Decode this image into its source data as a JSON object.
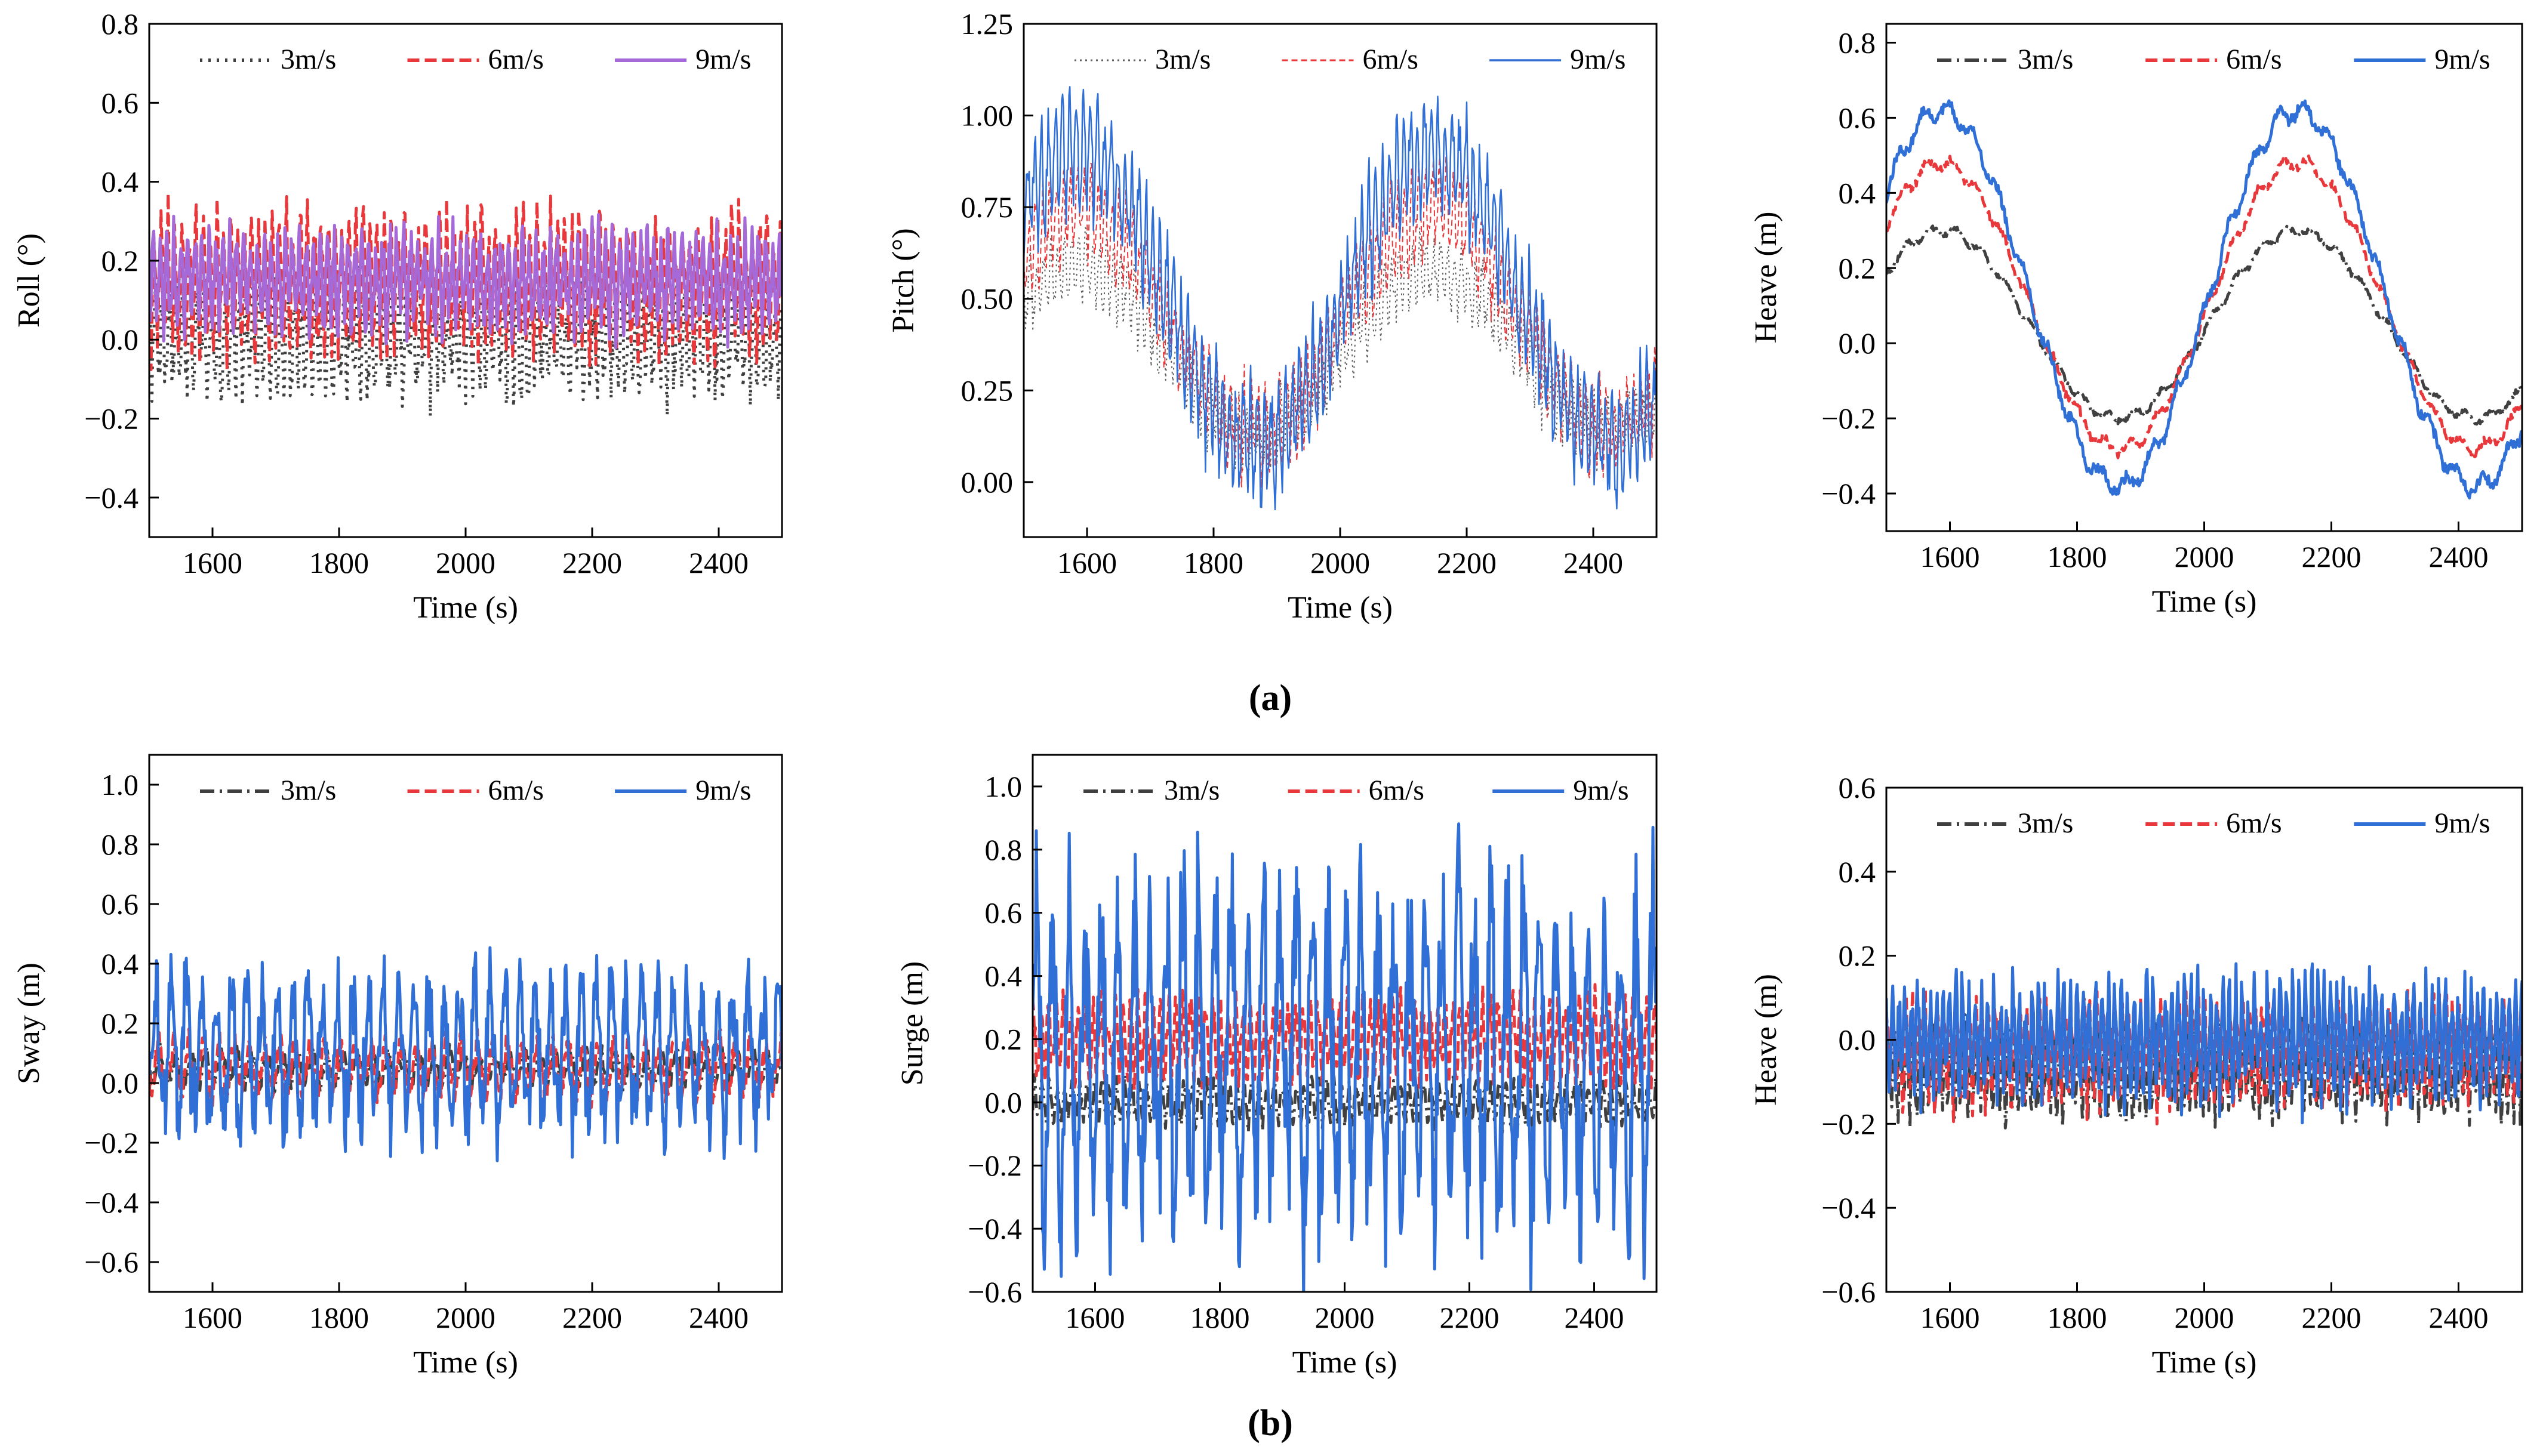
{
  "figure": {
    "group_labels": [
      "(a)",
      "(b)"
    ]
  },
  "chart_data": [
    {
      "type": "line",
      "title": "",
      "xlabel": "Time (s)",
      "ylabel": "Roll (°)",
      "xlim": [
        1500,
        2500
      ],
      "ylim": [
        -0.5,
        0.8
      ],
      "xticks": [
        1600,
        1800,
        2000,
        2200,
        2400
      ],
      "xtick_labels": [
        "1600",
        "1800",
        "2000",
        "2200",
        "2400"
      ],
      "yticks": [
        -0.4,
        -0.2,
        0.0,
        0.2,
        0.4,
        0.6,
        0.8
      ],
      "ytick_labels": [
        "−0.4",
        "−0.2",
        "0.0",
        "0.2",
        "0.4",
        "0.6",
        "0.8"
      ],
      "grid": false,
      "legend": "top",
      "series": [
        {
          "name": "3m/s",
          "color": "#404040",
          "style": "dot",
          "mean": 0.0,
          "amp": 0.14,
          "spike": 0.38,
          "period": 11,
          "slow_period": 0,
          "slow_amp": 0
        },
        {
          "name": "6m/s",
          "color": "#e8383b",
          "style": "dash",
          "mean": 0.14,
          "amp": 0.17,
          "spike": 0.5,
          "period": 11,
          "slow_period": 0,
          "slow_amp": 0
        },
        {
          "name": "9m/s",
          "color": "#a56ad8",
          "style": "thick",
          "mean": 0.15,
          "amp": 0.13,
          "spike": 0.55,
          "period": 11,
          "slow_period": 0,
          "slow_amp": 0
        }
      ]
    },
    {
      "type": "line",
      "title": "",
      "xlabel": "Time (s)",
      "ylabel": "Pitch (°)",
      "xlim": [
        1500,
        2500
      ],
      "ylim": [
        -0.15,
        1.25
      ],
      "xticks": [
        1600,
        1800,
        2000,
        2200,
        2400
      ],
      "xtick_labels": [
        "1600",
        "1800",
        "2000",
        "2200",
        "2400"
      ],
      "yticks": [
        0.0,
        0.25,
        0.5,
        0.75,
        1.0,
        1.25
      ],
      "ytick_labels": [
        "0.00",
        "0.25",
        "0.50",
        "0.75",
        "1.00",
        "1.25"
      ],
      "grid": false,
      "legend": "top",
      "series": [
        {
          "name": "3m/s",
          "color": "#606060",
          "style": "fine-dot",
          "mean": 0.36,
          "amp": 0.1,
          "spike": 0.65,
          "period": 11,
          "slow_period": 560,
          "slow_amp": 0.22
        },
        {
          "name": "6m/s",
          "color": "#e8383b",
          "style": "fine-dash",
          "mean": 0.44,
          "amp": 0.13,
          "spike": 0.85,
          "period": 11,
          "slow_period": 560,
          "slow_amp": 0.3
        },
        {
          "name": "9m/s",
          "color": "#2f6fd6",
          "style": "thin",
          "mean": 0.5,
          "amp": 0.16,
          "spike": 1.1,
          "period": 11,
          "slow_period": 560,
          "slow_amp": 0.4
        }
      ]
    },
    {
      "type": "line",
      "title": "",
      "xlabel": "Time (s)",
      "ylabel": "Heave (m)",
      "xlim": [
        1500,
        2500
      ],
      "ylim": [
        -0.5,
        0.85
      ],
      "xticks": [
        1600,
        1800,
        2000,
        2200,
        2400
      ],
      "xtick_labels": [
        "1600",
        "1800",
        "2000",
        "2200",
        "2400"
      ],
      "yticks": [
        -0.4,
        -0.2,
        0.0,
        0.2,
        0.4,
        0.6,
        0.8
      ],
      "ytick_labels": [
        "−0.4",
        "−0.2",
        "0.0",
        "0.2",
        "0.4",
        "0.6",
        "0.8"
      ],
      "grid": false,
      "legend": "top",
      "series": [
        {
          "name": "3m/s",
          "color": "#404040",
          "style": "dashdot",
          "mean": 0.05,
          "amp": 0.015,
          "spike": 0.31,
          "period": 40,
          "slow_period": 560,
          "slow_amp": 0.25
        },
        {
          "name": "6m/s",
          "color": "#e8383b",
          "style": "dash",
          "mean": 0.1,
          "amp": 0.02,
          "spike": 0.52,
          "period": 40,
          "slow_period": 560,
          "slow_amp": 0.38
        },
        {
          "name": "9m/s",
          "color": "#2f6fd6",
          "style": "thick",
          "mean": 0.12,
          "amp": 0.03,
          "spike": 0.66,
          "period": 40,
          "slow_period": 560,
          "slow_amp": 0.5
        }
      ]
    },
    {
      "type": "line",
      "title": "",
      "xlabel": "Time (s)",
      "ylabel": "Sway (m)",
      "xlim": [
        1500,
        2500
      ],
      "ylim": [
        -0.7,
        1.1
      ],
      "xticks": [
        1600,
        1800,
        2000,
        2200,
        2400
      ],
      "xtick_labels": [
        "1600",
        "1800",
        "2000",
        "2200",
        "2400"
      ],
      "yticks": [
        -0.6,
        -0.4,
        -0.2,
        0.0,
        0.2,
        0.4,
        0.6,
        0.8,
        1.0
      ],
      "ytick_labels": [
        "−0.6",
        "−0.4",
        "−0.2",
        "0.0",
        "0.2",
        "0.4",
        "0.6",
        "0.8",
        "1.0"
      ],
      "grid": false,
      "legend": "top",
      "series": [
        {
          "name": "3m/s",
          "color": "#404040",
          "style": "dashdot",
          "mean": 0.05,
          "amp": 0.06,
          "spike": 0.15,
          "period": 24,
          "slow_period": 0,
          "slow_amp": 0
        },
        {
          "name": "6m/s",
          "color": "#e8383b",
          "style": "dash",
          "mean": 0.05,
          "amp": 0.1,
          "spike": 0.3,
          "period": 24,
          "slow_period": 0,
          "slow_amp": 0
        },
        {
          "name": "9m/s",
          "color": "#2f6fd6",
          "style": "thick",
          "mean": 0.1,
          "amp": 0.27,
          "spike": 0.6,
          "period": 24,
          "slow_period": 0,
          "slow_amp": 0
        }
      ]
    },
    {
      "type": "line",
      "title": "",
      "xlabel": "Time (s)",
      "ylabel": "Surge (m)",
      "xlim": [
        1500,
        2500
      ],
      "ylim": [
        -0.6,
        1.1
      ],
      "xticks": [
        1600,
        1800,
        2000,
        2200,
        2400
      ],
      "xtick_labels": [
        "1600",
        "1800",
        "2000",
        "2200",
        "2400"
      ],
      "yticks": [
        -0.6,
        -0.4,
        -0.2,
        0.0,
        0.2,
        0.4,
        0.6,
        0.8,
        1.0
      ],
      "ytick_labels": [
        "−0.6",
        "−0.4",
        "−0.2",
        "0.0",
        "0.2",
        "0.4",
        "0.6",
        "0.8",
        "1.0"
      ],
      "grid": false,
      "legend": "top",
      "series": [
        {
          "name": "3m/s",
          "color": "#404040",
          "style": "dashdot",
          "mean": 0.0,
          "amp": 0.07,
          "spike": 0.1,
          "period": 12,
          "slow_period": 0,
          "slow_amp": 0
        },
        {
          "name": "6m/s",
          "color": "#e8383b",
          "style": "dash",
          "mean": 0.2,
          "amp": 0.13,
          "spike": 0.38,
          "period": 12,
          "slow_period": 0,
          "slow_amp": 0
        },
        {
          "name": "9m/s",
          "color": "#2f6fd6",
          "style": "thick",
          "mean": 0.15,
          "amp": 0.55,
          "spike": 0.8,
          "period": 26,
          "slow_period": 0,
          "slow_amp": 0
        }
      ]
    },
    {
      "type": "line",
      "title": "",
      "xlabel": "Time (s)",
      "ylabel": "Heave (m)",
      "xlim": [
        1500,
        2500
      ],
      "ylim": [
        -0.6,
        0.6
      ],
      "xticks": [
        1600,
        1800,
        2000,
        2200,
        2400
      ],
      "xtick_labels": [
        "1600",
        "1800",
        "2000",
        "2200",
        "2400"
      ],
      "yticks": [
        -0.6,
        -0.4,
        -0.2,
        0.0,
        0.2,
        0.4,
        0.6
      ],
      "ytick_labels": [
        "−0.6",
        "−0.4",
        "−0.2",
        "0.0",
        "0.2",
        "0.4",
        "0.6"
      ],
      "grid": false,
      "legend": "top",
      "series": [
        {
          "name": "3m/s",
          "color": "#404040",
          "style": "dashdot",
          "mean": -0.08,
          "amp": 0.1,
          "spike": 0.35,
          "period": 10,
          "slow_period": 0,
          "slow_amp": 0
        },
        {
          "name": "6m/s",
          "color": "#e8383b",
          "style": "dash",
          "mean": -0.03,
          "amp": 0.12,
          "spike": 0.38,
          "period": 10,
          "slow_period": 0,
          "slow_amp": 0
        },
        {
          "name": "9m/s",
          "color": "#2f6fd6",
          "style": "thick",
          "mean": 0.0,
          "amp": 0.14,
          "spike": 0.45,
          "period": 10,
          "slow_period": 0,
          "slow_amp": 0
        }
      ]
    }
  ]
}
